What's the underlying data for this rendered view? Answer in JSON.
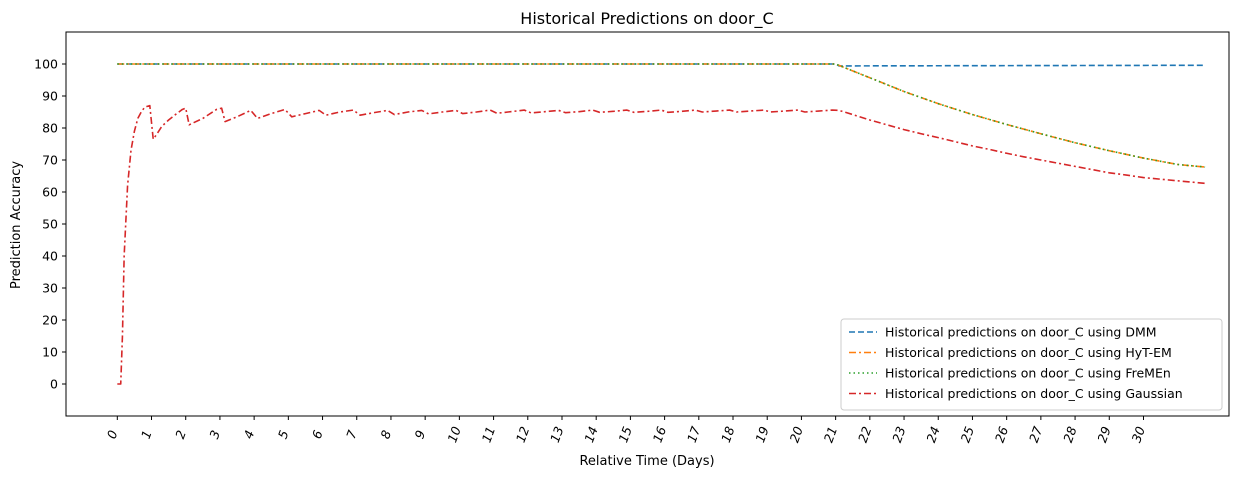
{
  "chart_data": {
    "type": "line",
    "title": "Historical Predictions on door_C",
    "xlabel": "Relative Time (Days)",
    "ylabel": "Prediction Accuracy",
    "xlim": [
      -1.5,
      32.5
    ],
    "ylim": [
      -10,
      110
    ],
    "x_ticks": [
      0,
      1,
      2,
      3,
      4,
      5,
      6,
      7,
      8,
      9,
      10,
      11,
      12,
      13,
      14,
      15,
      16,
      17,
      18,
      19,
      20,
      21,
      22,
      23,
      24,
      25,
      26,
      27,
      28,
      29,
      30
    ],
    "x_tick_labels": [
      "0",
      "1",
      "2",
      "3",
      "4",
      "5",
      "6",
      "7",
      "8",
      "9",
      "10",
      "11",
      "12",
      "13",
      "14",
      "15",
      "16",
      "17",
      "18",
      "19",
      "20",
      "21",
      "22",
      "23",
      "24",
      "25",
      "26",
      "27",
      "28",
      "29",
      "30"
    ],
    "y_ticks": [
      0,
      10,
      20,
      30,
      40,
      50,
      60,
      70,
      80,
      90,
      100
    ],
    "y_tick_labels": [
      "0",
      "10",
      "20",
      "30",
      "40",
      "50",
      "60",
      "70",
      "80",
      "90",
      "100"
    ],
    "grid": false,
    "legend_position": "lower-right",
    "series": [
      {
        "name": "Historical predictions on door_C using DMM",
        "color": "#1f77b4",
        "dash": "dashed",
        "x": [
          0,
          21,
          21.1,
          31.8
        ],
        "y": [
          100,
          100,
          99.4,
          99.6
        ]
      },
      {
        "name": "Historical predictions on door_C using HyT-EM",
        "color": "#ff7f0e",
        "dash": "dashdot",
        "x": [
          0,
          21,
          22,
          23,
          24,
          25,
          26,
          27,
          28,
          29,
          30,
          31,
          31.8
        ],
        "y": [
          100,
          100,
          95.7,
          91.4,
          87.6,
          84.2,
          81.1,
          78.2,
          75.4,
          72.9,
          70.6,
          68.6,
          67.8
        ]
      },
      {
        "name": "Historical predictions on door_C using FreMEn",
        "color": "#2ca02c",
        "dash": "dotted",
        "x": [
          0,
          21,
          22,
          23,
          24,
          25,
          26,
          27,
          28,
          29,
          30,
          31,
          31.8
        ],
        "y": [
          100,
          100,
          95.7,
          91.4,
          87.6,
          84.2,
          81.1,
          78.2,
          75.4,
          72.9,
          70.6,
          68.6,
          67.8
        ]
      },
      {
        "name": "Historical predictions on door_C using Gaussian",
        "color": "#d62728",
        "dash": "dashdot",
        "x": [
          0,
          0.1,
          0.15,
          0.2,
          0.3,
          0.4,
          0.5,
          0.6,
          0.7,
          0.8,
          0.95,
          1.05,
          1.15,
          1.3,
          1.5,
          1.7,
          1.9,
          2.0,
          2.1,
          2.5,
          2.9,
          3.05,
          3.15,
          3.5,
          3.9,
          4.1,
          4.5,
          4.9,
          5.1,
          5.5,
          5.9,
          6.1,
          6.5,
          6.9,
          7.1,
          7.5,
          7.9,
          8.1,
          8.5,
          8.9,
          9.1,
          9.5,
          9.9,
          10.1,
          10.5,
          10.9,
          11.1,
          11.5,
          11.9,
          12.1,
          12.5,
          12.9,
          13.1,
          13.5,
          13.9,
          14.1,
          14.5,
          14.9,
          15.1,
          15.5,
          15.9,
          16.1,
          16.5,
          16.9,
          17.1,
          17.5,
          17.9,
          18.1,
          18.5,
          18.9,
          19.1,
          19.5,
          19.9,
          20.1,
          20.5,
          20.9,
          21.1,
          21.5,
          22,
          22.5,
          23,
          23.5,
          24,
          24.5,
          25,
          25.5,
          26,
          26.5,
          27,
          27.5,
          28,
          28.5,
          29,
          29.5,
          30,
          30.5,
          31,
          31.8
        ],
        "y": [
          0,
          0,
          15,
          40,
          62,
          73,
          79,
          83,
          85,
          86.5,
          87,
          76.5,
          78,
          80.5,
          82.5,
          84.2,
          85.8,
          86.2,
          81,
          83,
          85.8,
          86.2,
          82,
          83.5,
          85.5,
          83,
          84.5,
          85.8,
          83.5,
          84.5,
          85.5,
          84,
          85,
          85.6,
          84,
          84.8,
          85.5,
          84.2,
          85,
          85.5,
          84.4,
          85,
          85.5,
          84.5,
          85,
          85.6,
          84.6,
          85.1,
          85.6,
          84.7,
          85.1,
          85.5,
          84.8,
          85.1,
          85.6,
          84.9,
          85.2,
          85.6,
          84.9,
          85.2,
          85.6,
          84.9,
          85.2,
          85.6,
          85,
          85.3,
          85.6,
          85,
          85.3,
          85.6,
          85,
          85.3,
          85.6,
          85,
          85.3,
          85.6,
          85.5,
          84.2,
          82.5,
          81,
          79.5,
          78.2,
          77,
          75.7,
          74.4,
          73.3,
          72.1,
          71,
          70,
          69,
          68,
          67,
          66,
          65.3,
          64.5,
          64,
          63.5,
          62.7
        ]
      }
    ]
  }
}
